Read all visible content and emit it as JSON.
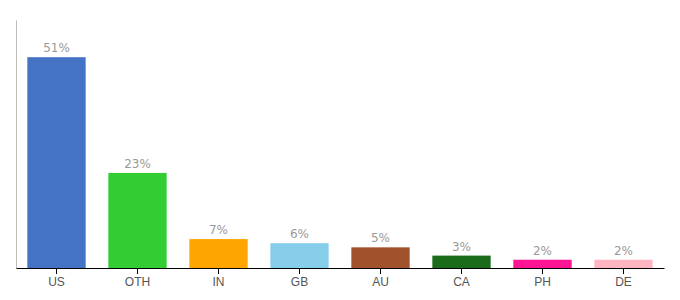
{
  "chart_data": {
    "type": "bar",
    "categories": [
      "US",
      "OTH",
      "IN",
      "GB",
      "AU",
      "CA",
      "PH",
      "DE"
    ],
    "values": [
      51,
      23,
      7,
      6,
      5,
      3,
      2,
      2
    ],
    "value_labels": [
      "51%",
      "23%",
      "7%",
      "6%",
      "5%",
      "3%",
      "2%",
      "2%"
    ],
    "colors": [
      "#4472C4",
      "#33CC33",
      "#FFA500",
      "#87CEEB",
      "#A0522D",
      "#1A6B1A",
      "#FF1493",
      "#FFB6C1"
    ],
    "ylim": [
      0,
      60
    ],
    "data_labels": true,
    "tick_labels": "x"
  }
}
